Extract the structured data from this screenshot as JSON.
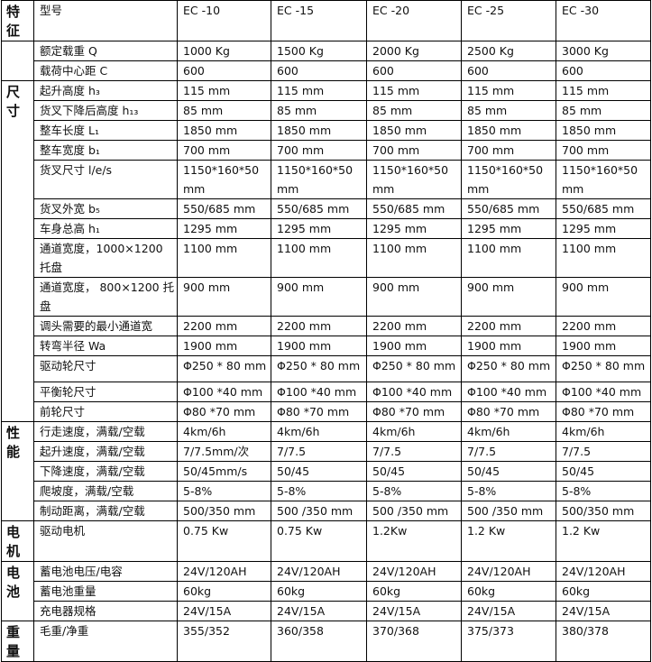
{
  "header": {
    "label": "型号",
    "models": [
      "EC -10",
      "EC -15",
      "EC -20",
      "EC -25",
      "EC -30"
    ]
  },
  "groups": [
    {
      "label": "特征",
      "start": 0,
      "end": 0
    },
    {
      "label": "",
      "start": 1,
      "end": 2
    },
    {
      "label": "尺寸",
      "start": 3,
      "end": 16
    },
    {
      "label": "性能",
      "start": 17,
      "end": 21
    },
    {
      "label": "电机",
      "start": 22,
      "end": 22
    },
    {
      "label": "电池",
      "start": 23,
      "end": 25
    },
    {
      "label": "重量",
      "start": 26,
      "end": 26
    }
  ],
  "rows": [
    {
      "label": "额定载重 Q",
      "values": [
        "1000 Kg",
        "1500 Kg",
        "2000 Kg",
        "2500 Kg",
        "3000 Kg"
      ]
    },
    {
      "label": "载荷中心距 C",
      "values": [
        "600",
        "600",
        "600",
        "600",
        "600"
      ]
    },
    {
      "label": "起升高度 h₃",
      "values": [
        "115 mm",
        "115 mm",
        "115 mm",
        "115 mm",
        "115 mm"
      ]
    },
    {
      "label": "货叉下降后高度 h₁₃",
      "values": [
        "85 mm",
        "85 mm",
        "85 mm",
        "85 mm",
        "85 mm"
      ]
    },
    {
      "label": "整车长度 L₁",
      "values": [
        "1850 mm",
        "1850 mm",
        "1850 mm",
        "1850 mm",
        "1850 mm"
      ]
    },
    {
      "label": "整车宽度 b₁",
      "values": [
        "700 mm",
        "700 mm",
        "700 mm",
        "700 mm",
        "700 mm"
      ]
    },
    {
      "label": "货叉尺寸 l/e/s",
      "values": [
        "1150*160*50 mm",
        "1150*160*50 mm",
        "1150*160*50 mm",
        "1150*160*50 mm",
        "1150*160*50 mm"
      ]
    },
    {
      "label": "货叉外宽 b₅",
      "values": [
        "550/685 mm",
        "550/685 mm",
        "550/685 mm",
        "550/685 mm",
        "550/685 mm"
      ]
    },
    {
      "label": "车身总高 h₁",
      "values": [
        "1295 mm",
        "1295 mm",
        "1295 mm",
        "1295 mm",
        "1295 mm"
      ]
    },
    {
      "label": "通道宽度，1000×1200 托盘",
      "values": [
        "1100 mm",
        "1100 mm",
        "1100 mm",
        "1100 mm",
        "1100 mm"
      ]
    },
    {
      "label": "通道宽度， 800×1200 托盘",
      "values": [
        "900 mm",
        "900 mm",
        "900 mm",
        "900 mm",
        "900 mm"
      ]
    },
    {
      "label": "调头需要的最小通道宽",
      "values": [
        "2200 mm",
        "2200 mm",
        "2200 mm",
        "2200 mm",
        "2200 mm"
      ]
    },
    {
      "label": "转弯半径 Wa",
      "values": [
        "1900 mm",
        "1900 mm",
        "1900 mm",
        "1900 mm",
        "1900 mm"
      ]
    },
    {
      "label": "驱动轮尺寸",
      "values": [
        "Φ250 * 80 mm",
        "Φ250 * 80 mm",
        "Φ250 * 80 mm",
        "Φ250 * 80 mm",
        "Φ250 * 80 mm"
      ]
    },
    {
      "label": "平衡轮尺寸",
      "values": [
        "Φ100 *40 mm",
        "Φ100 *40 mm",
        "Φ100 *40 mm",
        "Φ100 *40 mm",
        "Φ100 *40 mm"
      ]
    },
    {
      "label": "前轮尺寸",
      "values": [
        "Φ80 *70 mm",
        "Φ80 *70 mm",
        "Φ80 *70 mm",
        "Φ80 *70 mm",
        "Φ80 *70 mm"
      ]
    },
    {
      "label": "行走速度，满载/空载",
      "values": [
        "4km/6h",
        "4km/6h",
        "4km/6h",
        "4km/6h",
        "4km/6h"
      ]
    },
    {
      "label": "起升速度，满载/空载",
      "values": [
        "7/7.5mm/次",
        "7/7.5",
        "7/7.5",
        "7/7.5",
        "7/7.5"
      ]
    },
    {
      "label": "下降速度，满载/空载",
      "values": [
        "50/45mm/s",
        "50/45",
        "50/45",
        "50/45",
        "50/45"
      ]
    },
    {
      "label": "爬坡度，满载/空载",
      "values": [
        "5-8%",
        "5-8%",
        "5-8%",
        "5-8%",
        "5-8%"
      ]
    },
    {
      "label": "制动距离，满载/空载",
      "values": [
        "500/350 mm",
        "500 /350 mm",
        "500 /350 mm",
        "500 /350 mm",
        "500/350 mm"
      ]
    },
    {
      "label": "驱动电机",
      "values": [
        "0.75 Kw",
        "0.75 Kw",
        "1.2Kw",
        "1.2 Kw",
        "1.2 Kw"
      ]
    },
    {
      "label": "蓄电池电压/电容",
      "values": [
        "24V/120AH",
        "24V/120AH",
        "24V/120AH",
        "24V/120AH",
        "24V/120AH"
      ]
    },
    {
      "label": "蓄电池重量",
      "values": [
        "60kg",
        "60kg",
        "60kg",
        "60kg",
        "60kg"
      ]
    },
    {
      "label": "充电器规格",
      "values": [
        "24V/15A",
        "24V/15A",
        "24V/15A",
        "24V/15A",
        "24V/15A"
      ]
    },
    {
      "label": "毛重/净重",
      "values": [
        "355/352",
        "360/358",
        "370/368",
        "375/373",
        "380/378"
      ]
    }
  ]
}
